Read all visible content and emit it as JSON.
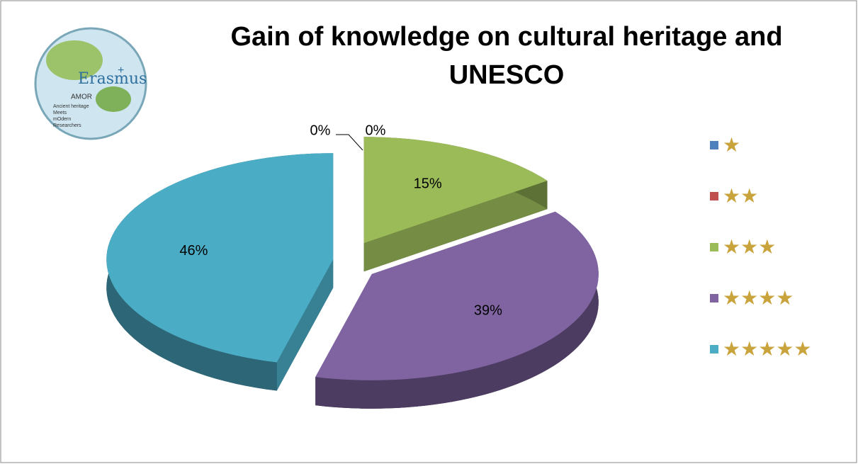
{
  "chart_data": {
    "type": "pie3d",
    "title": "Gain of knowledge on cultural heritage and UNESCO",
    "categories": [
      "★",
      "★★",
      "★★★",
      "★★★★",
      "★★★★★"
    ],
    "values": [
      0,
      0,
      15,
      39,
      46
    ],
    "value_labels": [
      "0%",
      "0%",
      "15%",
      "39%",
      "46%"
    ],
    "colors": [
      "#4f81bd",
      "#c0504d",
      "#9bbb59",
      "#8064a2",
      "#4bacc6"
    ],
    "legend": "right",
    "legend_text_color": "#c9a43c"
  },
  "logo": {
    "name": "Erasmus",
    "mark": "+",
    "project": "AMOR",
    "lines": [
      "Ancient heritage",
      "Meets",
      "mOdern",
      "Researchers"
    ]
  }
}
